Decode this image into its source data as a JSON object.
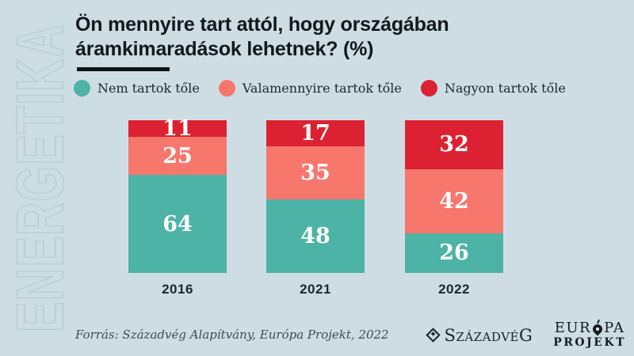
{
  "watermark": "ENERGETIKA",
  "header": {
    "title_line1": "Ön mennyire tart attól, hogy országában",
    "title_line2": "áramkimaradások lehetnek? (%)"
  },
  "legend": {
    "items": [
      {
        "label": "Nem tartok tőle",
        "color": "#4db3a6"
      },
      {
        "label": "Valamennyire tartok tőle",
        "color": "#f8776d"
      },
      {
        "label": "Nagyon tartok tőle",
        "color": "#dc2232"
      }
    ]
  },
  "chart_data": {
    "type": "bar",
    "stacked": true,
    "unit": "%",
    "title": "Ön mennyire tart attól, hogy országában áramkimaradások lehetnek? (%)",
    "categories": [
      "2016",
      "2021",
      "2022"
    ],
    "series": [
      {
        "name": "Nem tartok tőle",
        "color": "#4db3a6",
        "values": [
          64,
          48,
          26
        ]
      },
      {
        "name": "Valamennyire tartok tőle",
        "color": "#f8776d",
        "values": [
          25,
          35,
          42
        ]
      },
      {
        "name": "Nagyon tartok tőle",
        "color": "#dc2232",
        "values": [
          11,
          17,
          32
        ]
      }
    ],
    "value_labels": true,
    "legend_position": "top",
    "ylim": [
      0,
      100
    ]
  },
  "footer": {
    "source": "Forrás: Századvég Alapítvány, Európa Projekt, 2022",
    "logos": {
      "szazadveg": "SzázadvéG",
      "europa_line1_left": "EUR",
      "europa_line1_right": "PA",
      "europa_line2": "PROJEKT"
    }
  },
  "colors": {
    "background": "#cddde3",
    "title_text": "#10181d",
    "bar_label_text": "#ffffff",
    "teal": "#4db3a6",
    "salmon": "#f8776d",
    "red": "#dc2232"
  }
}
